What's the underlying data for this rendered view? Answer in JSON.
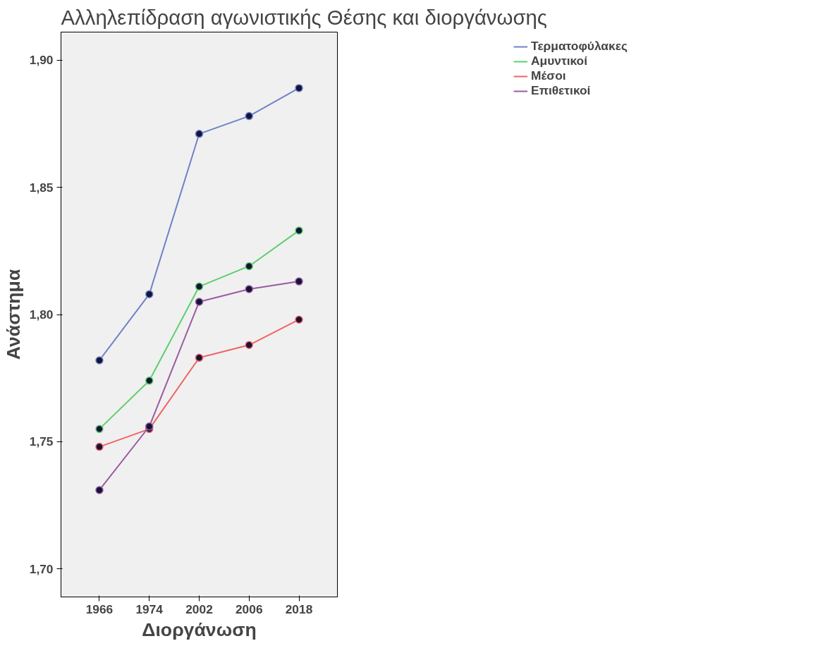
{
  "chart_data": {
    "type": "line",
    "title": "Αλληλεπίδραση αγωνιστικής Θέσης και διοργάνωσης",
    "xlabel": "Διοργάνωση",
    "ylabel": "Ανάστημα",
    "categories": [
      "1966",
      "1974",
      "2002",
      "2006",
      "2018"
    ],
    "series": [
      {
        "name": "Τερματοφύλακες",
        "color": "#6f82c8",
        "values": [
          1.782,
          1.808,
          1.871,
          1.878,
          1.889
        ]
      },
      {
        "name": "Αμυντικοί",
        "color": "#5ccf6c",
        "values": [
          1.755,
          1.774,
          1.811,
          1.819,
          1.833
        ]
      },
      {
        "name": "Μέσοι",
        "color": "#f06464",
        "values": [
          1.748,
          1.755,
          1.783,
          1.788,
          1.798
        ]
      },
      {
        "name": "Επιθετικοί",
        "color": "#9a5aa0",
        "values": [
          1.731,
          1.756,
          1.805,
          1.81,
          1.813
        ]
      }
    ],
    "ylim": [
      1.689,
      1.911
    ],
    "yticks": [
      {
        "value": 1.7,
        "label": "1,70"
      },
      {
        "value": 1.75,
        "label": "1,75"
      },
      {
        "value": 1.8,
        "label": "1,80"
      },
      {
        "value": 1.85,
        "label": "1,85"
      },
      {
        "value": 1.9,
        "label": "1,90"
      }
    ],
    "grid": false,
    "legend": "top right",
    "marker": "circle",
    "line_style": "solid"
  }
}
